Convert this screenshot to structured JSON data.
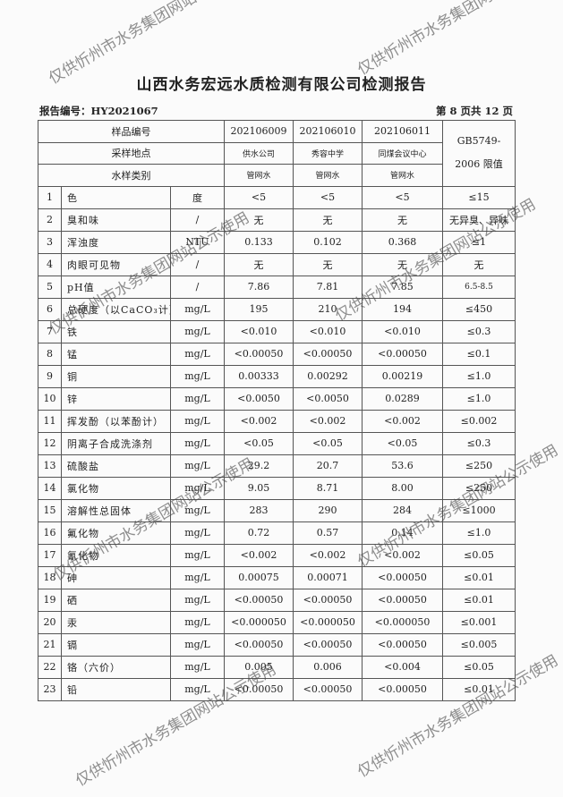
{
  "title": "山西水务宏远水质检测有限公司检测报告",
  "report_no": "报告编号：HY2021067",
  "page_info": "第 8 页共 12 页",
  "watermark": "仅供忻州市水务集团网站公示使用",
  "header": {
    "sample_no_label": "样品编号",
    "location_label": "采样地点",
    "type_label": "水样类别",
    "standard_label": "GB5749-2006 限值",
    "samples": [
      {
        "no": "202106009",
        "location": "供水公司",
        "type": "管网水"
      },
      {
        "no": "202106010",
        "location": "秀容中学",
        "type": "管网水"
      },
      {
        "no": "202106011",
        "location": "同煤会议中心",
        "type": "管网水"
      }
    ]
  },
  "rows": [
    [
      "1",
      "色",
      "度",
      "<5",
      "<5",
      "<5",
      "≤15"
    ],
    [
      "2",
      "臭和味",
      "/",
      "无",
      "无",
      "无",
      "无异臭、异味"
    ],
    [
      "3",
      "浑浊度",
      "NTU",
      "0.133",
      "0.102",
      "0.368",
      "≤1"
    ],
    [
      "4",
      "肉眼可见物",
      "/",
      "无",
      "无",
      "无",
      "无"
    ],
    [
      "5",
      "pH值",
      "/",
      "7.86",
      "7.81",
      "7.85",
      "6.5-8.5"
    ],
    [
      "6",
      "总硬度（以CaCO₃计）",
      "mg/L",
      "195",
      "210",
      "194",
      "≤450"
    ],
    [
      "7",
      "铁",
      "mg/L",
      "<0.010",
      "<0.010",
      "<0.010",
      "≤0.3"
    ],
    [
      "8",
      "锰",
      "mg/L",
      "<0.00050",
      "<0.00050",
      "<0.00050",
      "≤0.1"
    ],
    [
      "9",
      "铜",
      "mg/L",
      "0.00333",
      "0.00292",
      "0.00219",
      "≤1.0"
    ],
    [
      "10",
      "锌",
      "mg/L",
      "<0.0050",
      "<0.0050",
      "0.0289",
      "≤1.0"
    ],
    [
      "11",
      "挥发酚（以苯酚计）",
      "mg/L",
      "<0.002",
      "<0.002",
      "<0.002",
      "≤0.002"
    ],
    [
      "12",
      "阴离子合成洗涤剂",
      "mg/L",
      "<0.05",
      "<0.05",
      "<0.05",
      "≤0.3"
    ],
    [
      "13",
      "硫酸盐",
      "mg/L",
      "29.2",
      "20.7",
      "53.6",
      "≤250"
    ],
    [
      "14",
      "氯化物",
      "mg/L",
      "9.05",
      "8.71",
      "8.00",
      "≤250"
    ],
    [
      "15",
      "溶解性总固体",
      "mg/L",
      "283",
      "290",
      "284",
      "≤1000"
    ],
    [
      "16",
      "氟化物",
      "mg/L",
      "0.72",
      "0.57",
      "0.14",
      "≤1.0"
    ],
    [
      "17",
      "氰化物",
      "mg/L",
      "<0.002",
      "<0.002",
      "<0.002",
      "≤0.05"
    ],
    [
      "18",
      "砷",
      "mg/L",
      "0.00075",
      "0.00071",
      "<0.00050",
      "≤0.01"
    ],
    [
      "19",
      "硒",
      "mg/L",
      "<0.00050",
      "<0.00050",
      "<0.00050",
      "≤0.01"
    ],
    [
      "20",
      "汞",
      "mg/L",
      "<0.000050",
      "<0.000050",
      "<0.000050",
      "≤0.001"
    ],
    [
      "21",
      "镉",
      "mg/L",
      "<0.00050",
      "<0.00050",
      "<0.00050",
      "≤0.005"
    ],
    [
      "22",
      "铬（六价）",
      "mg/L",
      "0.005",
      "0.006",
      "<0.004",
      "≤0.05"
    ],
    [
      "23",
      "铅",
      "mg/L",
      "<0.00050",
      "<0.00050",
      "<0.00050",
      "≤0.01"
    ]
  ]
}
